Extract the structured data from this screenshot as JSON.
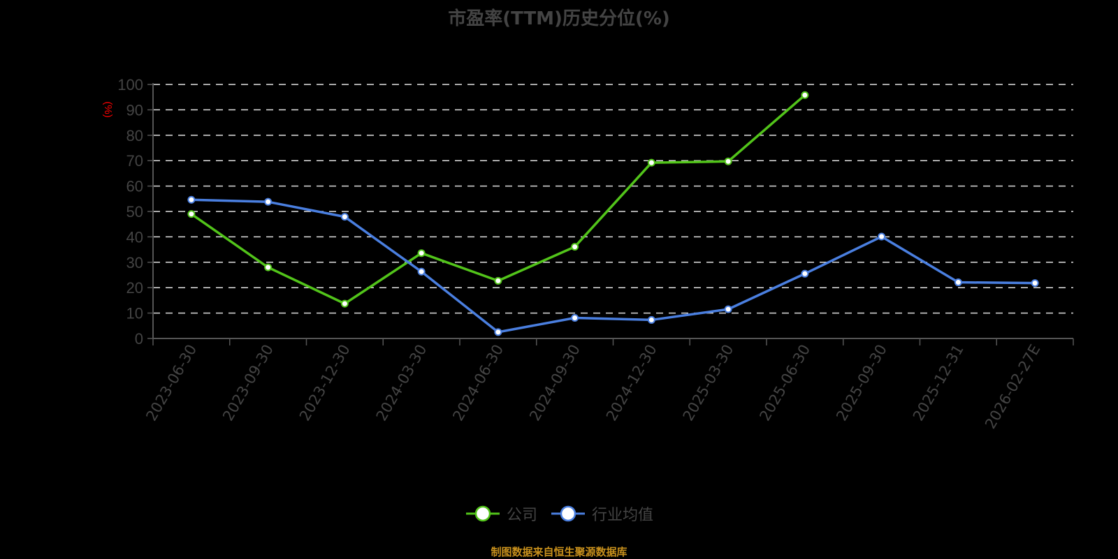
{
  "title": "市盈率(TTM)历史分位(%)",
  "source_text": "制图数据来自恒生聚源数据库",
  "legend": [
    {
      "label": "公司",
      "color": "#52c41a"
    },
    {
      "label": "行业均值",
      "color": "#4a7fe0"
    }
  ],
  "chart_data": {
    "type": "line",
    "title": "市盈率(TTM)历史分位(%)",
    "xlabel": "",
    "ylabel": "(%)",
    "ylim": [
      0,
      100
    ],
    "yticks": [
      0,
      10,
      20,
      30,
      40,
      50,
      60,
      70,
      80,
      90,
      100
    ],
    "grid": true,
    "legend_position": "bottom",
    "categories": [
      "2023-06-30",
      "2023-09-30",
      "2023-12-30",
      "2024-03-30",
      "2024-06-30",
      "2024-09-30",
      "2024-12-30",
      "2025-03-30",
      "2025-06-30",
      "2025-09-30",
      "2025-12-31",
      "2026-02-27E"
    ],
    "series": [
      {
        "name": "公司",
        "color": "#52c41a",
        "values": [
          49.0,
          28.0,
          13.7,
          33.6,
          22.7,
          36.1,
          69.2,
          69.7,
          95.8,
          null,
          null,
          null
        ]
      },
      {
        "name": "行业均值",
        "color": "#4a7fe0",
        "values": [
          54.6,
          53.8,
          47.9,
          26.3,
          2.5,
          8.1,
          7.3,
          11.5,
          25.5,
          40.1,
          22.1,
          21.8
        ]
      }
    ]
  }
}
